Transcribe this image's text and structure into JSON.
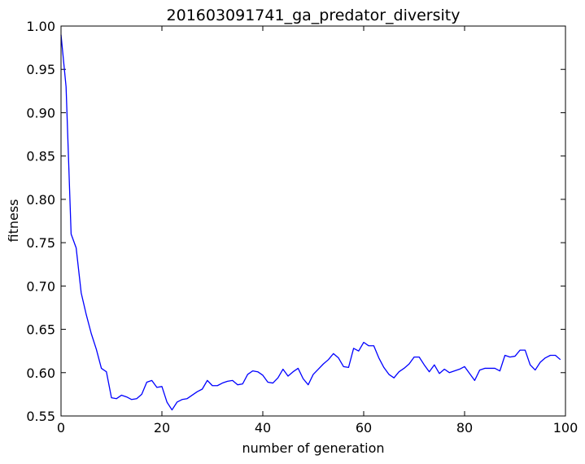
{
  "chart_data": {
    "type": "line",
    "title": "201603091741_ga_predator_diversity",
    "xlabel": "number of generation",
    "ylabel": "fitness",
    "xlim": [
      0,
      100
    ],
    "ylim": [
      0.55,
      1.0
    ],
    "x_ticks": [
      "0",
      "20",
      "40",
      "60",
      "80",
      "100"
    ],
    "y_ticks": [
      "0.55",
      "0.60",
      "0.65",
      "0.70",
      "0.75",
      "0.80",
      "0.85",
      "0.90",
      "0.95",
      "1.00"
    ],
    "grid": false,
    "legend": false,
    "series": [
      {
        "color": "#0000ff",
        "x": [
          0,
          1,
          2,
          3,
          4,
          5,
          6,
          7,
          8,
          9,
          10,
          11,
          12,
          13,
          14,
          15,
          16,
          17,
          18,
          19,
          20,
          21,
          22,
          23,
          24,
          25,
          26,
          27,
          28,
          29,
          30,
          31,
          32,
          33,
          34,
          35,
          36,
          37,
          38,
          39,
          40,
          41,
          42,
          43,
          44,
          45,
          46,
          47,
          48,
          49,
          50,
          51,
          52,
          53,
          54,
          55,
          56,
          57,
          58,
          59,
          60,
          61,
          62,
          63,
          64,
          65,
          66,
          67,
          68,
          69,
          70,
          71,
          72,
          73,
          74,
          75,
          76,
          77,
          78,
          79,
          80,
          81,
          82,
          83,
          84,
          85,
          86,
          87,
          88,
          89,
          90,
          91,
          92,
          93,
          94,
          95,
          96,
          97,
          98,
          99
        ],
        "y": [
          0.99,
          0.93,
          0.76,
          0.744,
          0.692,
          0.667,
          0.645,
          0.627,
          0.605,
          0.601,
          0.571,
          0.57,
          0.574,
          0.572,
          0.569,
          0.57,
          0.575,
          0.589,
          0.591,
          0.583,
          0.584,
          0.566,
          0.557,
          0.566,
          0.569,
          0.57,
          0.574,
          0.578,
          0.581,
          0.591,
          0.585,
          0.585,
          0.588,
          0.59,
          0.591,
          0.586,
          0.587,
          0.598,
          0.602,
          0.601,
          0.597,
          0.589,
          0.588,
          0.594,
          0.604,
          0.596,
          0.601,
          0.605,
          0.593,
          0.586,
          0.598,
          0.604,
          0.61,
          0.615,
          0.622,
          0.617,
          0.607,
          0.606,
          0.628,
          0.625,
          0.635,
          0.631,
          0.631,
          0.617,
          0.606,
          0.598,
          0.594,
          0.601,
          0.605,
          0.61,
          0.618,
          0.618,
          0.609,
          0.601,
          0.609,
          0.599,
          0.604,
          0.6,
          0.602,
          0.604,
          0.607,
          0.599,
          0.591,
          0.603,
          0.605,
          0.605,
          0.605,
          0.602,
          0.62,
          0.618,
          0.619,
          0.626,
          0.626,
          0.609,
          0.603,
          0.612,
          0.617,
          0.62,
          0.62,
          0.615
        ]
      }
    ]
  }
}
